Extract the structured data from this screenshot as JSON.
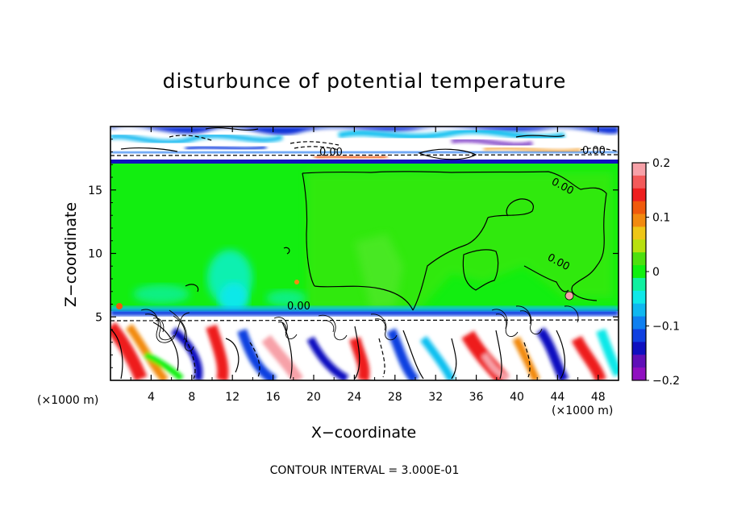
{
  "chart_data": {
    "type": "heatmap",
    "title": "disturbunce of potential temperature",
    "xlabel": "X−coordinate",
    "ylabel": "Z−coordinate",
    "x_unit_left": "(×1000 m)",
    "x_unit_right": "(×1000 m)",
    "xlim": [
      0,
      50
    ],
    "ylim": [
      0,
      20
    ],
    "x_ticks": [
      "4",
      "8",
      "12",
      "16",
      "20",
      "24",
      "28",
      "32",
      "36",
      "40",
      "44",
      "48"
    ],
    "y_ticks": [
      "5",
      "10",
      "15"
    ],
    "colorbar": {
      "range": [
        -0.2,
        0.2
      ],
      "ticks": [
        "0.2",
        "0.1",
        "0",
        "−0.1",
        "−0.2"
      ],
      "colors": [
        "#f7a1a8",
        "#f35a5a",
        "#ee1f1f",
        "#f05a0c",
        "#f28a10",
        "#eec618",
        "#b8e010",
        "#4ee010",
        "#10f010",
        "#10f0a0",
        "#10e8e8",
        "#10b8f0",
        "#1080f0",
        "#1040e0",
        "#1010c0",
        "#6010b8",
        "#9010c0"
      ]
    },
    "contour_labels": [
      "0.00",
      "0.00",
      "0.00",
      "0.00",
      "0.00"
    ],
    "footer": "CONTOUR INTERVAL = 3.000E-01",
    "grid": false
  }
}
